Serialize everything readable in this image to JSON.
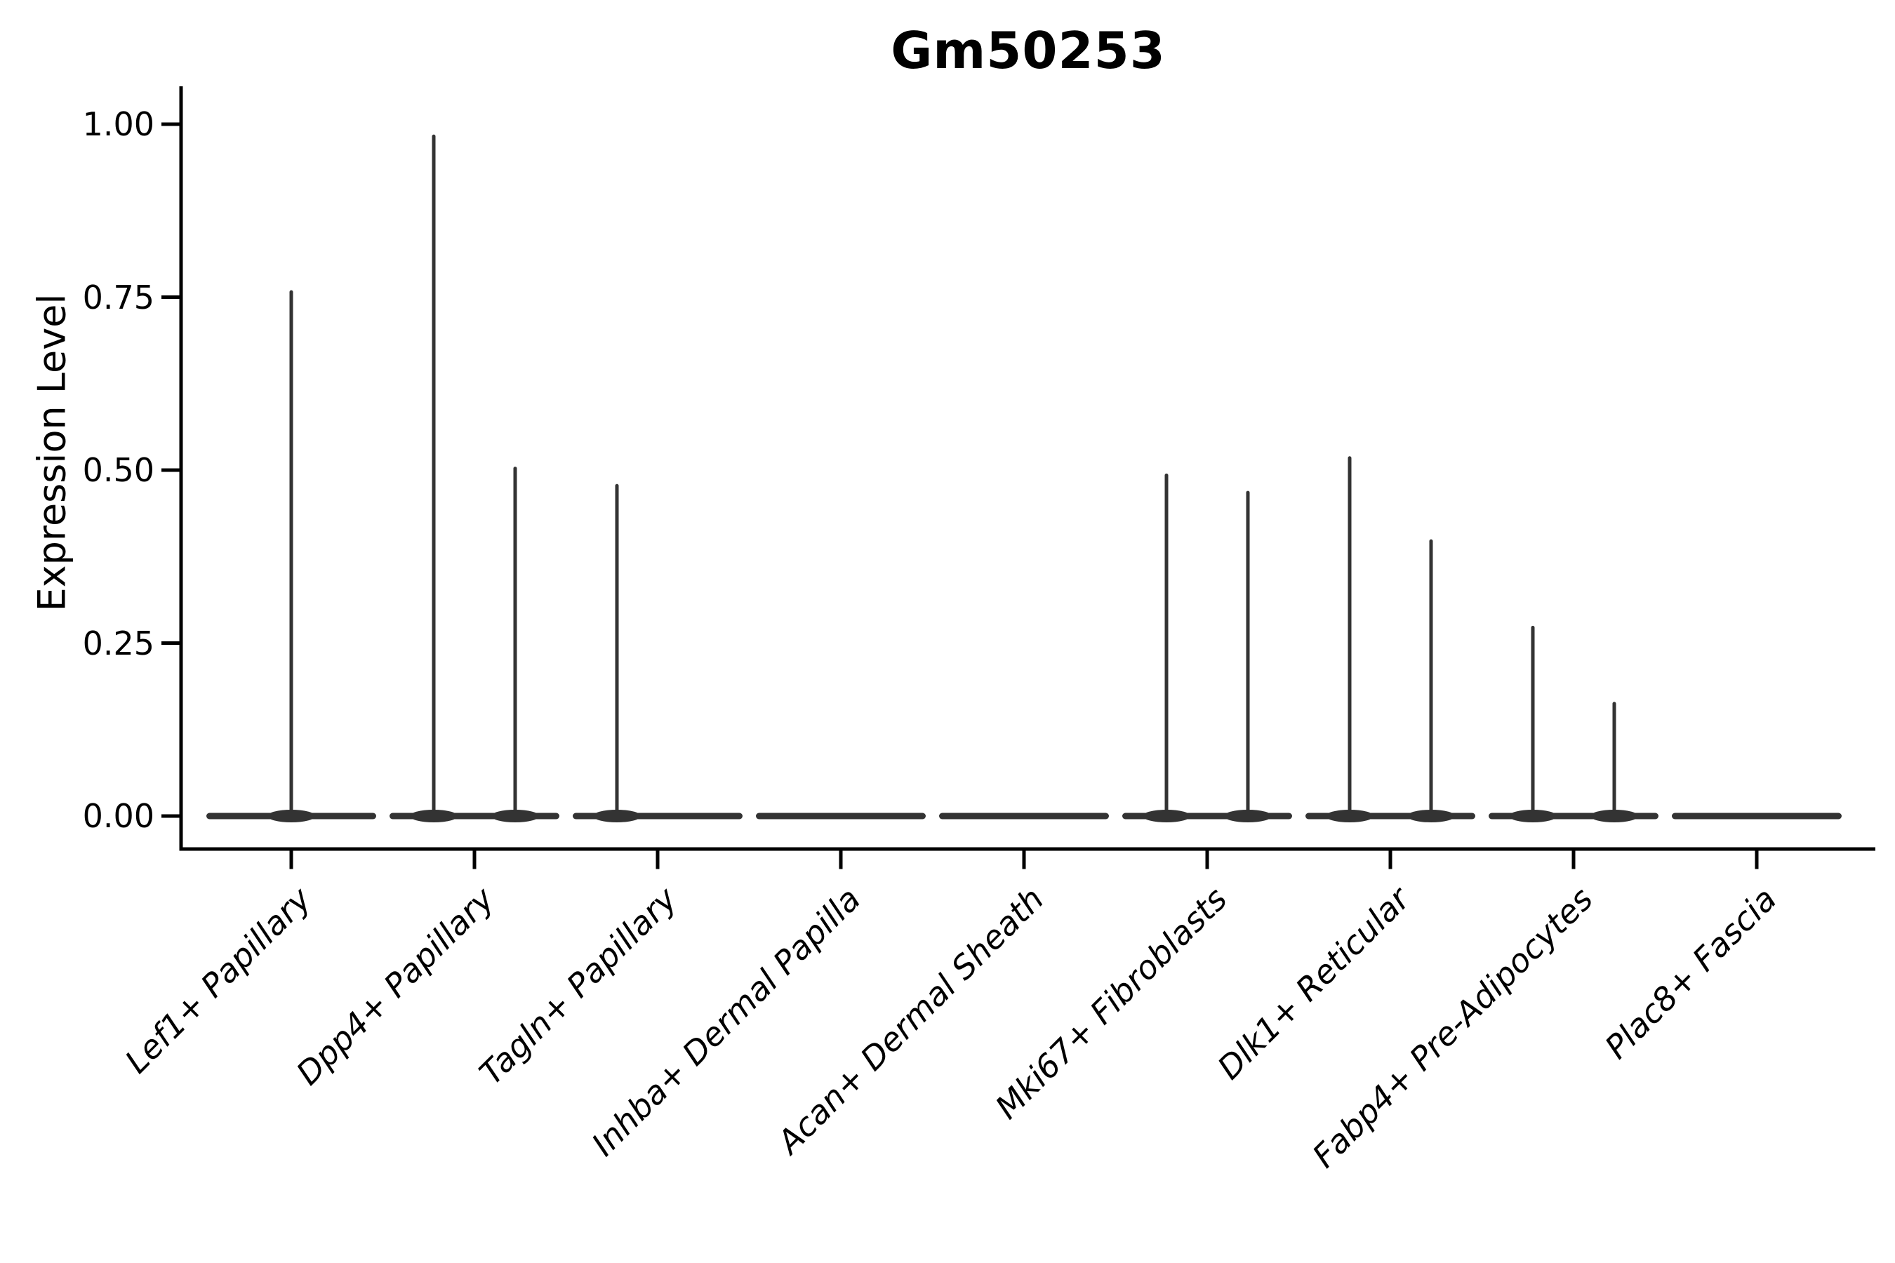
{
  "figure": {
    "title": "Gm50253",
    "y_axis_title": "Expression Level"
  },
  "chart_data": {
    "type": "violin",
    "title": "Gm50253",
    "xlabel": "",
    "ylabel": "Expression Level",
    "ylim": [
      0,
      1
    ],
    "ytick_values": [
      0,
      0.25,
      0.5,
      0.75,
      1.0
    ],
    "ytick_labels": [
      "0.00",
      "0.25",
      "0.50",
      "0.75",
      "1.00"
    ],
    "grid": false,
    "legend_position": "none",
    "x_tick_rotation_deg": 45,
    "description": "Violin plot of Gm50253 expression; every violin is collapsed to a flat density line at 0 with thin vertical spikes reaching the maximum expressed value. Some categories contain two side-by-side violins (left/right slots), others a single centered violin.",
    "categories": [
      "Lef1+ Papillary",
      "Dpp4+ Papillary",
      "Tagln+ Papillary",
      "Inhba+ Dermal Papilla",
      "Acan+ Dermal Sheath",
      "Mki67+ Fibroblasts",
      "Dlk1+ Reticular",
      "Fabp4+ Pre-Adipocytes",
      "Plac8+ Fascia"
    ],
    "baseline_value": 0,
    "violins": [
      {
        "category": "Lef1+ Papillary",
        "spikes": [
          {
            "slot": "center",
            "max": 0.76
          }
        ]
      },
      {
        "category": "Dpp4+ Papillary",
        "spikes": [
          {
            "slot": "left",
            "max": 0.985
          },
          {
            "slot": "right",
            "max": 0.505
          }
        ]
      },
      {
        "category": "Tagln+ Papillary",
        "spikes": [
          {
            "slot": "left",
            "max": 0.48
          }
        ]
      },
      {
        "category": "Inhba+ Dermal Papilla",
        "spikes": []
      },
      {
        "category": "Acan+ Dermal Sheath",
        "spikes": []
      },
      {
        "category": "Mki67+ Fibroblasts",
        "spikes": [
          {
            "slot": "left",
            "max": 0.495
          },
          {
            "slot": "right",
            "max": 0.47
          }
        ]
      },
      {
        "category": "Dlk1+ Reticular",
        "spikes": [
          {
            "slot": "left",
            "max": 0.52
          },
          {
            "slot": "right",
            "max": 0.4
          }
        ]
      },
      {
        "category": "Fabp4+ Pre-Adipocytes",
        "spikes": [
          {
            "slot": "left",
            "max": 0.275
          },
          {
            "slot": "right",
            "max": 0.165
          }
        ]
      },
      {
        "category": "Plac8+ Fascia",
        "spikes": []
      }
    ],
    "colors": {
      "violin_stroke": "#333333",
      "axis": "#000000",
      "text": "#000000",
      "background": "#ffffff"
    }
  }
}
